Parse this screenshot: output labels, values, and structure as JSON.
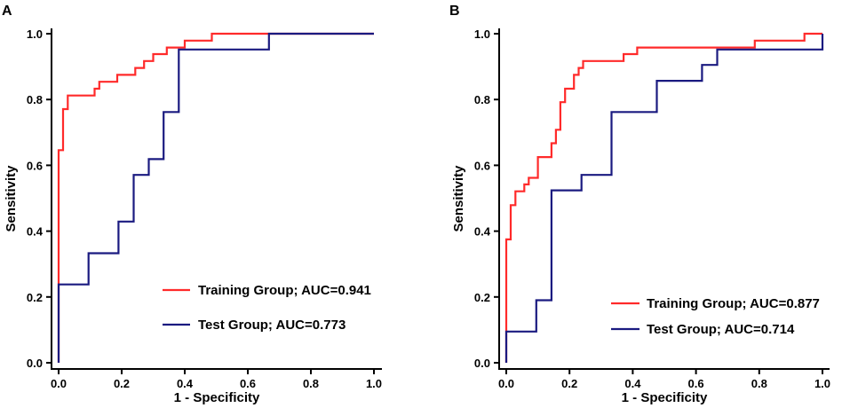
{
  "chart_data": [
    {
      "type": "line",
      "panel": "A",
      "xlabel": "1 - Specificity",
      "ylabel": "Sensitivity",
      "xlim": [
        0,
        1
      ],
      "ylim": [
        0,
        1
      ],
      "x_ticks": [
        "0.0",
        "0.2",
        "0.4",
        "0.6",
        "0.8",
        "1.0"
      ],
      "y_ticks": [
        "0.0",
        "0.2",
        "0.4",
        "0.6",
        "0.8",
        "1.0"
      ],
      "legend_position": "bottom-right",
      "series": [
        {
          "name": "Training Group; AUC=0.941",
          "color": "#ff2a2a",
          "points": [
            [
              0,
              0
            ],
            [
              0,
              0.24
            ],
            [
              0,
              0.646
            ],
            [
              0.014,
              0.646
            ],
            [
              0.014,
              0.771
            ],
            [
              0.029,
              0.771
            ],
            [
              0.029,
              0.812
            ],
            [
              0.114,
              0.812
            ],
            [
              0.114,
              0.833
            ],
            [
              0.129,
              0.833
            ],
            [
              0.129,
              0.854
            ],
            [
              0.186,
              0.854
            ],
            [
              0.186,
              0.875
            ],
            [
              0.243,
              0.875
            ],
            [
              0.243,
              0.896
            ],
            [
              0.271,
              0.896
            ],
            [
              0.271,
              0.917
            ],
            [
              0.3,
              0.917
            ],
            [
              0.3,
              0.938
            ],
            [
              0.343,
              0.938
            ],
            [
              0.343,
              0.958
            ],
            [
              0.4,
              0.958
            ],
            [
              0.4,
              0.979
            ],
            [
              0.486,
              0.979
            ],
            [
              0.486,
              1.0
            ],
            [
              1.0,
              1.0
            ]
          ]
        },
        {
          "name": "Test Group; AUC=0.773",
          "color": "#1a1a80",
          "points": [
            [
              0,
              0
            ],
            [
              0,
              0.238
            ],
            [
              0.095,
              0.238
            ],
            [
              0.095,
              0.333
            ],
            [
              0.19,
              0.333
            ],
            [
              0.19,
              0.429
            ],
            [
              0.238,
              0.429
            ],
            [
              0.238,
              0.571
            ],
            [
              0.286,
              0.571
            ],
            [
              0.286,
              0.619
            ],
            [
              0.333,
              0.619
            ],
            [
              0.333,
              0.762
            ],
            [
              0.381,
              0.762
            ],
            [
              0.381,
              0.952
            ],
            [
              0.667,
              0.952
            ],
            [
              0.667,
              1.0
            ],
            [
              1.0,
              1.0
            ]
          ]
        }
      ]
    },
    {
      "type": "line",
      "panel": "B",
      "xlabel": "1 - Specificity",
      "ylabel": "Sensitivity",
      "xlim": [
        0,
        1
      ],
      "ylim": [
        0,
        1
      ],
      "x_ticks": [
        "0.0",
        "0.2",
        "0.4",
        "0.6",
        "0.8",
        "1.0"
      ],
      "y_ticks": [
        "0.0",
        "0.2",
        "0.4",
        "0.6",
        "0.8",
        "1.0"
      ],
      "legend_position": "bottom-right",
      "series": [
        {
          "name": "Training Group; AUC=0.877",
          "color": "#ff2a2a",
          "points": [
            [
              0,
              0
            ],
            [
              0,
              0.375
            ],
            [
              0.014,
              0.375
            ],
            [
              0.014,
              0.479
            ],
            [
              0.029,
              0.479
            ],
            [
              0.029,
              0.521
            ],
            [
              0.057,
              0.521
            ],
            [
              0.057,
              0.542
            ],
            [
              0.071,
              0.542
            ],
            [
              0.071,
              0.562
            ],
            [
              0.1,
              0.562
            ],
            [
              0.1,
              0.625
            ],
            [
              0.143,
              0.625
            ],
            [
              0.143,
              0.667
            ],
            [
              0.157,
              0.667
            ],
            [
              0.157,
              0.708
            ],
            [
              0.171,
              0.708
            ],
            [
              0.171,
              0.792
            ],
            [
              0.186,
              0.792
            ],
            [
              0.186,
              0.833
            ],
            [
              0.214,
              0.833
            ],
            [
              0.214,
              0.875
            ],
            [
              0.229,
              0.875
            ],
            [
              0.229,
              0.896
            ],
            [
              0.243,
              0.896
            ],
            [
              0.243,
              0.917
            ],
            [
              0.371,
              0.917
            ],
            [
              0.371,
              0.938
            ],
            [
              0.414,
              0.938
            ],
            [
              0.414,
              0.958
            ],
            [
              0.786,
              0.958
            ],
            [
              0.786,
              0.979
            ],
            [
              0.943,
              0.979
            ],
            [
              0.943,
              1.0
            ],
            [
              1.0,
              1.0
            ]
          ]
        },
        {
          "name": "Test Group; AUC=0.714",
          "color": "#1a1a80",
          "points": [
            [
              0,
              0
            ],
            [
              0,
              0.095
            ],
            [
              0.095,
              0.095
            ],
            [
              0.095,
              0.19
            ],
            [
              0.143,
              0.19
            ],
            [
              0.143,
              0.524
            ],
            [
              0.238,
              0.524
            ],
            [
              0.238,
              0.571
            ],
            [
              0.333,
              0.571
            ],
            [
              0.333,
              0.762
            ],
            [
              0.476,
              0.762
            ],
            [
              0.476,
              0.857
            ],
            [
              0.619,
              0.857
            ],
            [
              0.619,
              0.905
            ],
            [
              0.667,
              0.905
            ],
            [
              0.667,
              0.952
            ],
            [
              1.0,
              0.952
            ],
            [
              1.0,
              1.0
            ]
          ]
        }
      ]
    }
  ]
}
